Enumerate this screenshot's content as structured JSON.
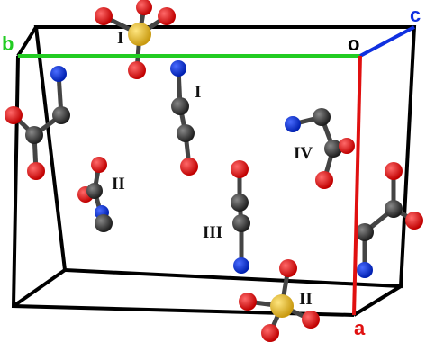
{
  "axes": {
    "b": "b",
    "c": "c",
    "origin": "o",
    "a": "a"
  },
  "molecule_labels": [
    "I",
    "I",
    "II",
    "III",
    "IV",
    "II"
  ]
}
